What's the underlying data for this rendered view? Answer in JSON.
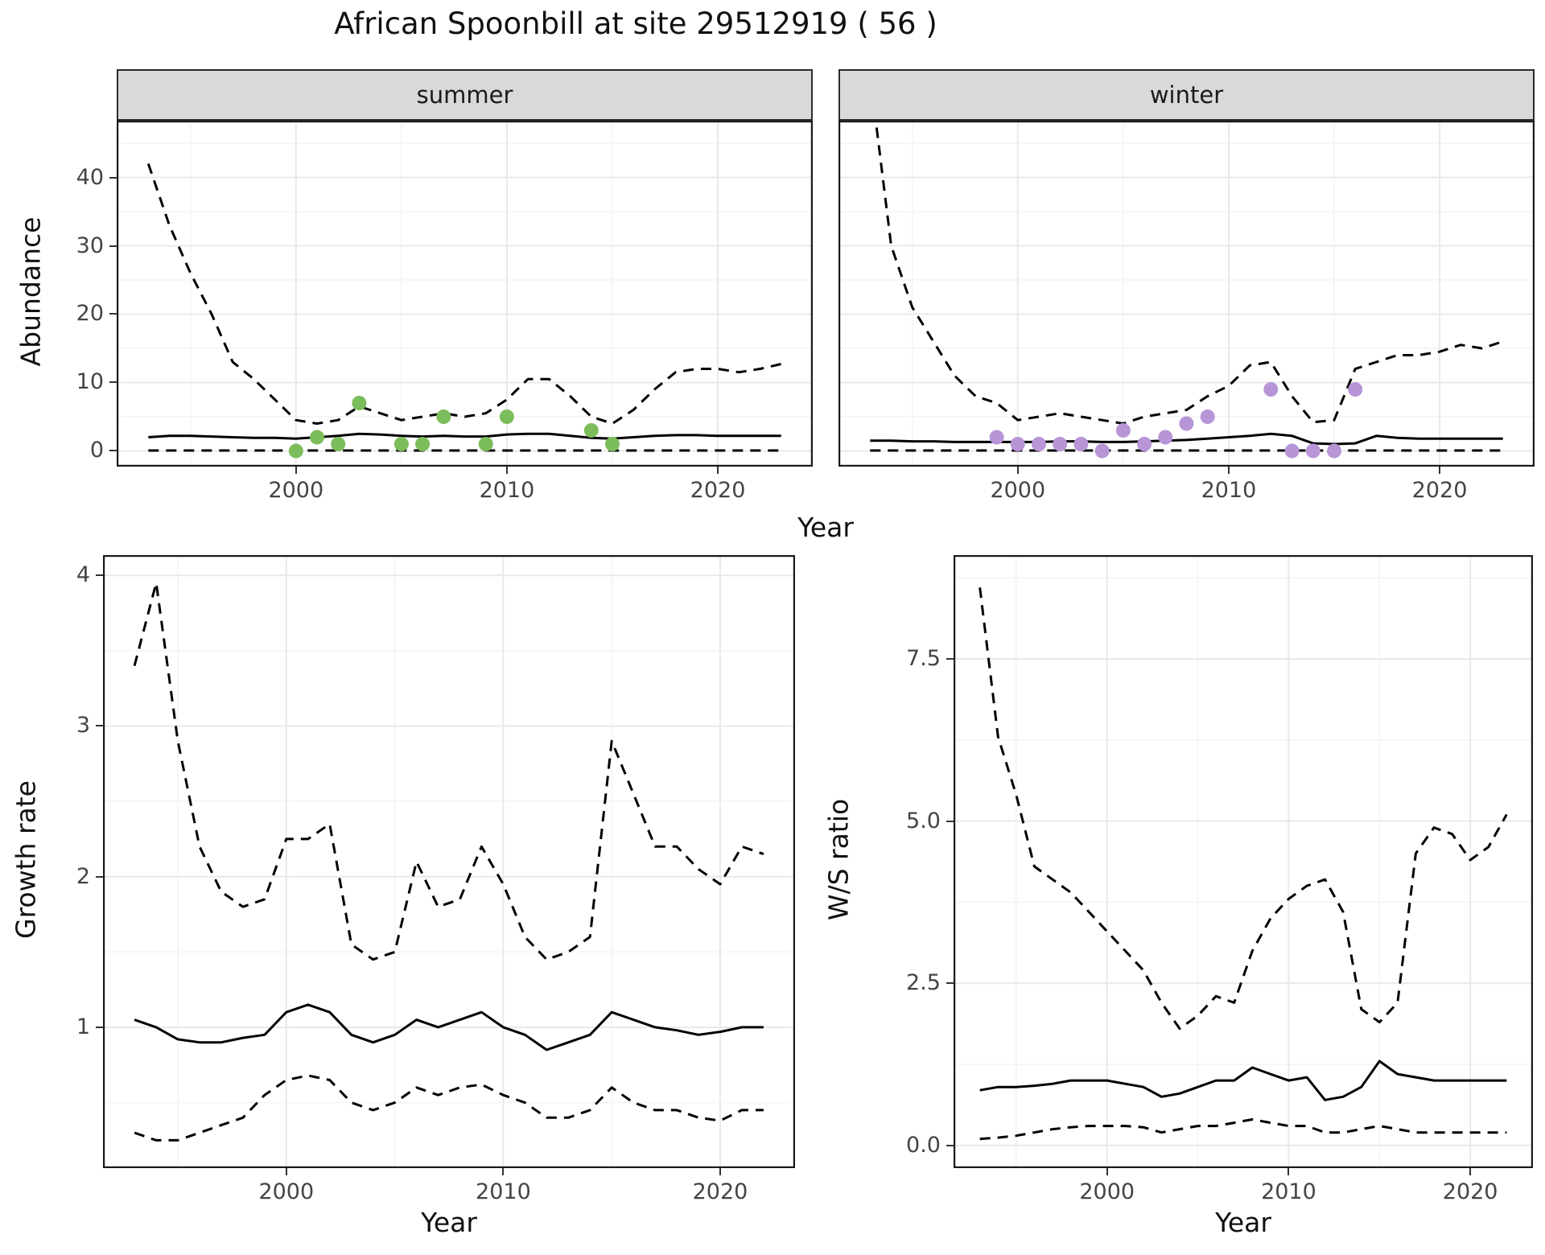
{
  "title": "African Spoonbill at site 29512919 ( 56 )",
  "facets": {
    "summer": "summer",
    "winter": "winter"
  },
  "axis_labels": {
    "x": "Year",
    "abundance": "Abundance",
    "growth": "Growth rate",
    "ws": "W/S ratio"
  },
  "colors": {
    "line": "#000000",
    "border": "#1a1a1a",
    "grid_major": "#e9e9e9",
    "grid_minor": "#f4f4f4",
    "tick": "#333333",
    "strip_bg": "#d9d9d9",
    "summer_point": "#7cbd5b",
    "winter_point": "#b795d6"
  },
  "chart_data": [
    {
      "id": "abundance_summer",
      "type": "line",
      "facet": "summer",
      "xlabel": "Year",
      "ylabel": "Abundance",
      "xlim": [
        1991.5,
        2024.5
      ],
      "ylim": [
        -2.3,
        48.3
      ],
      "xticks": [
        2000,
        2010,
        2020
      ],
      "xtick_labels": [
        "2000",
        "2010",
        "2020"
      ],
      "xticks_minor": [
        1995,
        2005,
        2015
      ],
      "yticks": [
        0,
        10,
        20,
        30,
        40
      ],
      "ytick_labels": [
        "0",
        "10",
        "20",
        "30",
        "40"
      ],
      "yticks_minor": [
        5,
        15,
        25,
        35,
        45
      ],
      "grid": true,
      "legend": "none",
      "series": [
        {
          "name": "upper_95CI",
          "style": "dashed",
          "x": [
            1993,
            1994,
            1995,
            1996,
            1997,
            1998,
            1999,
            2000,
            2001,
            2002,
            2003,
            2004,
            2005,
            2006,
            2007,
            2008,
            2009,
            2010,
            2011,
            2012,
            2013,
            2014,
            2015,
            2016,
            2017,
            2018,
            2019,
            2020,
            2021,
            2022,
            2023
          ],
          "y": [
            42,
            33,
            26,
            20,
            13,
            10.5,
            7.5,
            4.5,
            4,
            4.5,
            6.5,
            5.5,
            4.5,
            5,
            5.5,
            5,
            5.5,
            7.5,
            10.5,
            10.5,
            8,
            5,
            4,
            6,
            9,
            11.5,
            12,
            12,
            11.5,
            12,
            12.7
          ]
        },
        {
          "name": "median",
          "style": "solid",
          "x": [
            1993,
            1994,
            1995,
            1996,
            1997,
            1998,
            1999,
            2000,
            2001,
            2002,
            2003,
            2004,
            2005,
            2006,
            2007,
            2008,
            2009,
            2010,
            2011,
            2012,
            2013,
            2014,
            2015,
            2016,
            2017,
            2018,
            2019,
            2020,
            2021,
            2022,
            2023
          ],
          "y": [
            2,
            2.2,
            2.2,
            2.1,
            2,
            1.9,
            1.9,
            1.8,
            2,
            2.2,
            2.5,
            2.4,
            2.2,
            2.1,
            2.2,
            2.1,
            2.1,
            2.4,
            2.5,
            2.5,
            2.2,
            1.9,
            1.8,
            2,
            2.2,
            2.3,
            2.3,
            2.2,
            2.2,
            2.2,
            2.2
          ]
        },
        {
          "name": "lower_95CI",
          "style": "dashed",
          "x": [
            1993,
            1994,
            1995,
            1996,
            1997,
            1998,
            1999,
            2000,
            2001,
            2002,
            2003,
            2004,
            2005,
            2006,
            2007,
            2008,
            2009,
            2010,
            2011,
            2012,
            2013,
            2014,
            2015,
            2016,
            2017,
            2018,
            2019,
            2020,
            2021,
            2022,
            2023
          ],
          "y": [
            0.05,
            0.05,
            0.05,
            0.05,
            0.05,
            0.05,
            0.05,
            0.05,
            0.05,
            0.05,
            0.05,
            0.05,
            0.05,
            0.05,
            0.05,
            0.05,
            0.05,
            0.05,
            0.05,
            0.05,
            0.05,
            0.05,
            0.05,
            0.05,
            0.05,
            0.05,
            0.05,
            0.05,
            0.05,
            0.05,
            0.05
          ]
        },
        {
          "name": "observations",
          "style": "points",
          "color": "#7cbd5b",
          "x": [
            2000,
            2001,
            2002,
            2003,
            2005,
            2006,
            2007,
            2009,
            2010,
            2014,
            2015
          ],
          "y": [
            0,
            2,
            1,
            7,
            1,
            1,
            5,
            1,
            5,
            3,
            1
          ]
        }
      ]
    },
    {
      "id": "abundance_winter",
      "type": "line",
      "facet": "winter",
      "xlabel": "Year",
      "ylabel": "Abundance",
      "xlim": [
        1991.5,
        2024.5
      ],
      "ylim": [
        -2.3,
        48.3
      ],
      "xticks": [
        2000,
        2010,
        2020
      ],
      "xtick_labels": [
        "2000",
        "2010",
        "2020"
      ],
      "xticks_minor": [
        1995,
        2005,
        2015
      ],
      "yticks": [
        0,
        10,
        20,
        30,
        40
      ],
      "ytick_labels": [
        "0",
        "10",
        "20",
        "30",
        "40"
      ],
      "yticks_minor": [
        5,
        15,
        25,
        35,
        45
      ],
      "grid": true,
      "legend": "none",
      "series": [
        {
          "name": "upper_95CI",
          "style": "dashed",
          "x": [
            1993,
            1994,
            1995,
            1996,
            1997,
            1998,
            1999,
            2000,
            2001,
            2002,
            2003,
            2004,
            2005,
            2006,
            2007,
            2008,
            2009,
            2010,
            2011,
            2012,
            2013,
            2014,
            2015,
            2016,
            2017,
            2018,
            2019,
            2020,
            2021,
            2022,
            2023
          ],
          "y": [
            55,
            30,
            21,
            16,
            11,
            8,
            7,
            4.5,
            5,
            5.5,
            5,
            4.5,
            4,
            5,
            5.5,
            6,
            8,
            9.5,
            12.5,
            13,
            8,
            4.2,
            4.5,
            12,
            13,
            14,
            14,
            14.5,
            15.5,
            15,
            16
          ]
        },
        {
          "name": "median",
          "style": "solid",
          "x": [
            1993,
            1994,
            1995,
            1996,
            1997,
            1998,
            1999,
            2000,
            2001,
            2002,
            2003,
            2004,
            2005,
            2006,
            2007,
            2008,
            2009,
            2010,
            2011,
            2012,
            2013,
            2014,
            2015,
            2016,
            2017,
            2018,
            2019,
            2020,
            2021,
            2022,
            2023
          ],
          "y": [
            1.5,
            1.5,
            1.4,
            1.4,
            1.3,
            1.3,
            1.3,
            1.3,
            1.3,
            1.4,
            1.4,
            1.3,
            1.3,
            1.4,
            1.5,
            1.6,
            1.8,
            2,
            2.2,
            2.5,
            2.2,
            1.1,
            1,
            1.1,
            2.2,
            1.9,
            1.8,
            1.8,
            1.8,
            1.8,
            1.8
          ]
        },
        {
          "name": "lower_95CI",
          "style": "dashed",
          "x": [
            1993,
            1994,
            1995,
            1996,
            1997,
            1998,
            1999,
            2000,
            2001,
            2002,
            2003,
            2004,
            2005,
            2006,
            2007,
            2008,
            2009,
            2010,
            2011,
            2012,
            2013,
            2014,
            2015,
            2016,
            2017,
            2018,
            2019,
            2020,
            2021,
            2022,
            2023
          ],
          "y": [
            0.05,
            0.05,
            0.05,
            0.05,
            0.05,
            0.05,
            0.05,
            0.05,
            0.05,
            0.05,
            0.05,
            0.05,
            0.05,
            0.05,
            0.05,
            0.05,
            0.05,
            0.05,
            0.05,
            0.05,
            0.05,
            0.05,
            0.05,
            0.05,
            0.05,
            0.05,
            0.05,
            0.05,
            0.05,
            0.05,
            0.05
          ]
        },
        {
          "name": "observations",
          "style": "points",
          "color": "#b795d6",
          "x": [
            1999,
            2000,
            2001,
            2002,
            2003,
            2004,
            2005,
            2006,
            2007,
            2008,
            2009,
            2012,
            2013,
            2014,
            2015,
            2016
          ],
          "y": [
            2,
            1,
            1,
            1,
            1,
            0,
            3,
            1,
            2,
            4,
            5,
            9,
            0,
            0,
            0,
            9
          ]
        }
      ]
    },
    {
      "id": "growth_rate",
      "type": "line",
      "xlabel": "Year",
      "ylabel": "Growth rate",
      "xlim": [
        1991.55,
        2023.45
      ],
      "ylim": [
        0.065,
        4.135
      ],
      "xticks": [
        2000,
        2010,
        2020
      ],
      "xtick_labels": [
        "2000",
        "2010",
        "2020"
      ],
      "xticks_minor": [
        1995,
        2005,
        2015
      ],
      "yticks": [
        1,
        2,
        3,
        4
      ],
      "ytick_labels": [
        "1",
        "2",
        "3",
        "4"
      ],
      "yticks_minor": [
        0.5,
        1.5,
        2.5,
        3.5
      ],
      "grid": true,
      "legend": "none",
      "series": [
        {
          "name": "upper_95CI",
          "style": "dashed",
          "x": [
            1993,
            1994,
            1995,
            1996,
            1997,
            1998,
            1999,
            2000,
            2001,
            2002,
            2003,
            2004,
            2005,
            2006,
            2007,
            2008,
            2009,
            2010,
            2011,
            2012,
            2013,
            2014,
            2015,
            2016,
            2017,
            2018,
            2019,
            2020,
            2021,
            2022
          ],
          "y": [
            3.4,
            3.95,
            2.9,
            2.2,
            1.9,
            1.8,
            1.85,
            2.25,
            2.25,
            2.35,
            1.55,
            1.45,
            1.5,
            2.1,
            1.8,
            1.85,
            2.2,
            1.95,
            1.6,
            1.45,
            1.5,
            1.6,
            2.9,
            2.55,
            2.2,
            2.2,
            2.05,
            1.95,
            2.2,
            2.15
          ]
        },
        {
          "name": "median",
          "style": "solid",
          "x": [
            1993,
            1994,
            1995,
            1996,
            1997,
            1998,
            1999,
            2000,
            2001,
            2002,
            2003,
            2004,
            2005,
            2006,
            2007,
            2008,
            2009,
            2010,
            2011,
            2012,
            2013,
            2014,
            2015,
            2016,
            2017,
            2018,
            2019,
            2020,
            2021,
            2022
          ],
          "y": [
            1.05,
            1,
            0.92,
            0.9,
            0.9,
            0.93,
            0.95,
            1.1,
            1.15,
            1.1,
            0.95,
            0.9,
            0.95,
            1.05,
            1,
            1.05,
            1.1,
            1,
            0.95,
            0.85,
            0.9,
            0.95,
            1.1,
            1.05,
            1,
            0.98,
            0.95,
            0.97,
            1,
            1
          ]
        },
        {
          "name": "lower_95CI",
          "style": "dashed",
          "x": [
            1993,
            1994,
            1995,
            1996,
            1997,
            1998,
            1999,
            2000,
            2001,
            2002,
            2003,
            2004,
            2005,
            2006,
            2007,
            2008,
            2009,
            2010,
            2011,
            2012,
            2013,
            2014,
            2015,
            2016,
            2017,
            2018,
            2019,
            2020,
            2021,
            2022
          ],
          "y": [
            0.3,
            0.25,
            0.25,
            0.3,
            0.35,
            0.4,
            0.55,
            0.65,
            0.68,
            0.65,
            0.5,
            0.45,
            0.5,
            0.6,
            0.55,
            0.6,
            0.62,
            0.55,
            0.5,
            0.4,
            0.4,
            0.45,
            0.6,
            0.5,
            0.45,
            0.45,
            0.4,
            0.38,
            0.45,
            0.45
          ]
        }
      ]
    },
    {
      "id": "ws_ratio",
      "type": "line",
      "xlabel": "Year",
      "ylabel": "W/S ratio",
      "xlim": [
        1991.55,
        2023.45
      ],
      "ylim": [
        -0.35,
        9.1
      ],
      "xticks": [
        2000,
        2010,
        2020
      ],
      "xtick_labels": [
        "2000",
        "2010",
        "2020"
      ],
      "xticks_minor": [
        1995,
        2005,
        2015
      ],
      "yticks": [
        0,
        2.5,
        5,
        7.5
      ],
      "ytick_labels": [
        "0.0",
        "2.5",
        "5.0",
        "7.5"
      ],
      "yticks_minor": [
        1.25,
        3.75,
        6.25,
        8.75
      ],
      "grid": true,
      "legend": "none",
      "series": [
        {
          "name": "upper_95CI",
          "style": "dashed",
          "x": [
            1993,
            1994,
            1995,
            1996,
            1997,
            1998,
            1999,
            2000,
            2001,
            2002,
            2003,
            2004,
            2005,
            2006,
            2007,
            2008,
            2009,
            2010,
            2011,
            2012,
            2013,
            2014,
            2015,
            2016,
            2017,
            2018,
            2019,
            2020,
            2021,
            2022
          ],
          "y": [
            8.6,
            6.3,
            5.4,
            4.3,
            4.1,
            3.9,
            3.6,
            3.3,
            3,
            2.7,
            2.2,
            1.8,
            2,
            2.3,
            2.2,
            3,
            3.5,
            3.8,
            4,
            4.1,
            3.6,
            2.1,
            1.9,
            2.2,
            4.5,
            4.9,
            4.8,
            4.4,
            4.6,
            5.1
          ]
        },
        {
          "name": "median",
          "style": "solid",
          "x": [
            1993,
            1994,
            1995,
            1996,
            1997,
            1998,
            1999,
            2000,
            2001,
            2002,
            2003,
            2004,
            2005,
            2006,
            2007,
            2008,
            2009,
            2010,
            2011,
            2012,
            2013,
            2014,
            2015,
            2016,
            2017,
            2018,
            2019,
            2020,
            2021,
            2022
          ],
          "y": [
            0.85,
            0.9,
            0.9,
            0.92,
            0.95,
            1,
            1,
            1,
            0.95,
            0.9,
            0.75,
            0.8,
            0.9,
            1,
            1,
            1.2,
            1.1,
            1,
            1.05,
            0.7,
            0.75,
            0.9,
            1.3,
            1.1,
            1.05,
            1,
            1,
            1,
            1,
            1
          ]
        },
        {
          "name": "lower_95CI",
          "style": "dashed",
          "x": [
            1993,
            1994,
            1995,
            1996,
            1997,
            1998,
            1999,
            2000,
            2001,
            2002,
            2003,
            2004,
            2005,
            2006,
            2007,
            2008,
            2009,
            2010,
            2011,
            2012,
            2013,
            2014,
            2015,
            2016,
            2017,
            2018,
            2019,
            2020,
            2021,
            2022
          ],
          "y": [
            0.1,
            0.12,
            0.15,
            0.2,
            0.25,
            0.28,
            0.3,
            0.3,
            0.3,
            0.28,
            0.2,
            0.25,
            0.3,
            0.3,
            0.35,
            0.4,
            0.35,
            0.3,
            0.3,
            0.2,
            0.2,
            0.25,
            0.3,
            0.25,
            0.2,
            0.2,
            0.2,
            0.2,
            0.2,
            0.2
          ]
        }
      ]
    }
  ]
}
